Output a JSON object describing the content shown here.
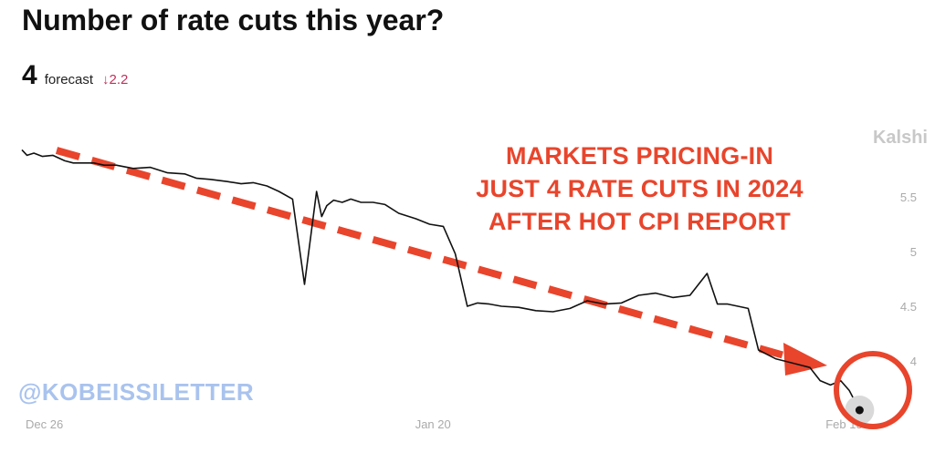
{
  "header": {
    "title": "Number of rate cuts this year?",
    "forecast_value": "4",
    "forecast_label": "forecast",
    "forecast_change": "↓2.2"
  },
  "brand": "Kalshi",
  "watermark": "@KOBEISSILETTER",
  "annotation": {
    "lines": [
      "MARKETS PRICING-IN",
      "JUST 4 RATE CUTS IN 2024",
      "AFTER HOT CPI REPORT"
    ]
  },
  "colors": {
    "line": "#111111",
    "trend_arrow": "#e8452c",
    "highlight_circle": "#e8452c",
    "annotation": "#e8452c",
    "change_down": "#c0305a",
    "watermark": "#a9c3ee",
    "tick_label": "#aaaaaa"
  },
  "chart_data": {
    "type": "line",
    "title": "Number of rate cuts this year?",
    "x_ticks": [
      "Dec 26",
      "Jan 20",
      "Feb 13"
    ],
    "y_ticks": [
      4,
      4.5,
      5,
      5.5
    ],
    "ylim": [
      3.55,
      6.05
    ],
    "xlim": [
      0,
      50
    ],
    "grid": false,
    "series": [
      {
        "x": [
          0,
          0.3,
          0.7,
          1.2,
          1.8,
          2.5,
          3,
          3.6,
          4.2,
          4.8,
          5.5,
          6.5,
          7.5,
          8.5,
          9.5,
          10.2,
          11,
          12,
          12.8,
          13.5,
          14.3,
          15,
          15.8,
          16.5,
          17.2,
          17.5,
          17.8,
          18.2,
          18.7,
          19.2,
          19.8,
          20.5,
          21.2,
          22,
          23,
          23.8,
          24.6,
          25.3,
          26,
          26.6,
          27.3,
          28,
          29,
          30,
          31,
          32,
          33,
          34,
          35,
          36,
          37,
          38,
          39,
          40,
          40.6,
          41.2,
          41.8,
          42.4,
          43,
          44,
          45,
          46,
          46.6,
          47.2,
          47.8,
          48.3,
          48.9
        ],
        "y": [
          5.93,
          5.88,
          5.9,
          5.87,
          5.88,
          5.83,
          5.81,
          5.81,
          5.81,
          5.79,
          5.79,
          5.76,
          5.77,
          5.72,
          5.71,
          5.67,
          5.66,
          5.64,
          5.62,
          5.63,
          5.6,
          5.55,
          5.48,
          4.7,
          5.55,
          5.32,
          5.42,
          5.47,
          5.45,
          5.48,
          5.45,
          5.45,
          5.43,
          5.35,
          5.3,
          5.25,
          5.23,
          4.98,
          4.5,
          4.53,
          4.52,
          4.5,
          4.49,
          4.46,
          4.45,
          4.48,
          4.55,
          4.52,
          4.53,
          4.6,
          4.62,
          4.58,
          4.6,
          4.8,
          4.52,
          4.52,
          4.5,
          4.48,
          4.1,
          4.02,
          3.98,
          3.94,
          3.82,
          3.78,
          3.82,
          3.73,
          3.55
        ]
      }
    ],
    "annotations": [
      "MARKETS PRICING-IN",
      "JUST 4 RATE CUTS IN 2024",
      "AFTER HOT CPI REPORT"
    ]
  }
}
